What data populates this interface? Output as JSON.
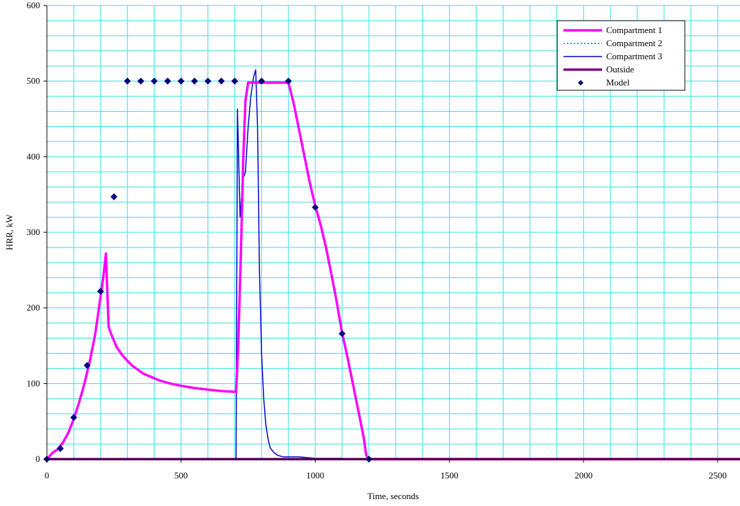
{
  "chart_data": {
    "type": "line",
    "xlabel": "Time, seconds",
    "ylabel": "HRR, kW",
    "xlim": [
      0,
      2700
    ],
    "ylim": [
      0,
      600
    ],
    "x_ticks": [
      0,
      500,
      1000,
      1500,
      2000,
      2500
    ],
    "y_ticks": [
      0,
      100,
      200,
      300,
      400,
      500,
      600
    ],
    "x_gridlines": [
      0,
      100,
      200,
      300,
      400,
      500,
      600,
      700,
      800,
      900,
      1000,
      1100,
      1200,
      1300,
      1400,
      1500,
      1600,
      1700,
      1800,
      1900,
      2000,
      2100,
      2200,
      2300,
      2400,
      2500,
      2600
    ],
    "y_gridlines": [
      0,
      20,
      40,
      60,
      80,
      100,
      120,
      140,
      160,
      180,
      200,
      220,
      240,
      260,
      280,
      300,
      320,
      340,
      360,
      380,
      400,
      420,
      440,
      460,
      480,
      500,
      520,
      540,
      560,
      580,
      600
    ],
    "grid": true,
    "grid_color": "#33e0e0",
    "legend_position": "top-right",
    "series": [
      {
        "name": "Compartment 1",
        "color": "#ff00ff",
        "style": "solid-thick",
        "points": [
          [
            0,
            0
          ],
          [
            20,
            8
          ],
          [
            40,
            13
          ],
          [
            60,
            22
          ],
          [
            80,
            35
          ],
          [
            100,
            53
          ],
          [
            120,
            75
          ],
          [
            140,
            100
          ],
          [
            160,
            130
          ],
          [
            180,
            165
          ],
          [
            200,
            215
          ],
          [
            210,
            240
          ],
          [
            220,
            272
          ],
          [
            230,
            175
          ],
          [
            240,
            165
          ],
          [
            260,
            148
          ],
          [
            280,
            138
          ],
          [
            300,
            130
          ],
          [
            320,
            123
          ],
          [
            340,
            118
          ],
          [
            360,
            113
          ],
          [
            380,
            110
          ],
          [
            400,
            107
          ],
          [
            420,
            104
          ],
          [
            440,
            102
          ],
          [
            460,
            100
          ],
          [
            500,
            97
          ],
          [
            550,
            94
          ],
          [
            600,
            92
          ],
          [
            650,
            90
          ],
          [
            700,
            89
          ],
          [
            705,
            89
          ],
          [
            712,
            140
          ],
          [
            722,
            260
          ],
          [
            732,
            400
          ],
          [
            740,
            475
          ],
          [
            750,
            498
          ],
          [
            780,
            498
          ],
          [
            900,
            498
          ],
          [
            920,
            470
          ],
          [
            940,
            435
          ],
          [
            960,
            400
          ],
          [
            980,
            365
          ],
          [
            1000,
            335
          ],
          [
            1020,
            310
          ],
          [
            1040,
            280
          ],
          [
            1060,
            245
          ],
          [
            1080,
            208
          ],
          [
            1100,
            167
          ],
          [
            1120,
            135
          ],
          [
            1140,
            100
          ],
          [
            1160,
            65
          ],
          [
            1180,
            30
          ],
          [
            1190,
            5
          ],
          [
            1200,
            0
          ],
          [
            2700,
            0
          ]
        ]
      },
      {
        "name": "Compartment 2",
        "color": "#007a7a",
        "style": "dotted",
        "points": [
          [
            0,
            0
          ],
          [
            2700,
            0
          ]
        ]
      },
      {
        "name": "Compartment 3",
        "color": "#0000cc",
        "style": "solid-thin",
        "points": [
          [
            0,
            0
          ],
          [
            700,
            0
          ],
          [
            705,
            0
          ],
          [
            710,
            463
          ],
          [
            720,
            320
          ],
          [
            730,
            370
          ],
          [
            740,
            380
          ],
          [
            750,
            440
          ],
          [
            760,
            480
          ],
          [
            770,
            505
          ],
          [
            778,
            515
          ],
          [
            785,
            440
          ],
          [
            792,
            250
          ],
          [
            800,
            140
          ],
          [
            808,
            80
          ],
          [
            816,
            45
          ],
          [
            824,
            27
          ],
          [
            832,
            15
          ],
          [
            845,
            9
          ],
          [
            860,
            5
          ],
          [
            880,
            3
          ],
          [
            940,
            3
          ],
          [
            1000,
            1
          ],
          [
            1100,
            1
          ],
          [
            1110,
            0
          ],
          [
            2700,
            0
          ]
        ]
      },
      {
        "name": "Outside",
        "color": "#800080",
        "style": "solid-thick",
        "points": [
          [
            0,
            0
          ],
          [
            2700,
            0
          ]
        ]
      },
      {
        "name": "Model",
        "color": "#000080",
        "style": "markers",
        "points": [
          [
            0,
            0
          ],
          [
            50,
            14
          ],
          [
            100,
            55
          ],
          [
            150,
            124
          ],
          [
            200,
            222
          ],
          [
            250,
            347
          ],
          [
            300,
            500
          ],
          [
            350,
            500
          ],
          [
            400,
            500
          ],
          [
            450,
            500
          ],
          [
            500,
            500
          ],
          [
            550,
            500
          ],
          [
            600,
            500
          ],
          [
            650,
            500
          ],
          [
            700,
            500
          ],
          [
            800,
            500
          ],
          [
            900,
            500
          ],
          [
            1000,
            333
          ],
          [
            1100,
            166
          ],
          [
            1200,
            0
          ]
        ]
      }
    ]
  }
}
